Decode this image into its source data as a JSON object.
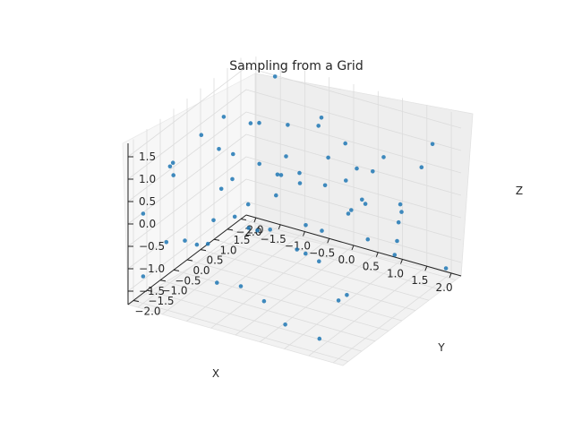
{
  "chart_data": {
    "type": "scatter",
    "title": "Sampling from a Grid",
    "xlabel": "X",
    "ylabel": "Y",
    "zlabel": "Z",
    "projection": "3d",
    "xlim": [
      -2.2,
      2.2
    ],
    "ylim": [
      -2.2,
      2.2
    ],
    "zlim": [
      -1.8,
      1.8
    ],
    "x_ticks": [
      "−2.0",
      "−1.5",
      "−1.0",
      "−0.5",
      "0.0",
      "0.5",
      "1.0",
      "1.5",
      "2.0"
    ],
    "y_ticks": [
      "−2.0",
      "−1.5",
      "−1.0",
      "−0.5",
      "0.0",
      "0.5",
      "1.0",
      "1.5",
      "2.0"
    ],
    "z_ticks": [
      "−1.5",
      "−1.0",
      "−0.5",
      "0.0",
      "0.5",
      "1.0",
      "1.5"
    ],
    "grid": true,
    "marker_color": "#1f77b4",
    "points": [
      {
        "x": -2.0,
        "y": -2.0,
        "z": -1.2
      },
      {
        "x": -2.0,
        "y": -2.0,
        "z": 0.2
      },
      {
        "x": -1.6,
        "y": -1.6,
        "z": 1.0
      },
      {
        "x": -1.8,
        "y": -1.5,
        "z": -0.6
      },
      {
        "x": -1.5,
        "y": -1.8,
        "z": 1.4
      },
      {
        "x": -1.2,
        "y": -1.9,
        "z": -0.2
      },
      {
        "x": -1.0,
        "y": -1.0,
        "z": 1.5
      },
      {
        "x": -1.0,
        "y": -1.2,
        "z": 0.0
      },
      {
        "x": -0.6,
        "y": -1.8,
        "z": -1.0
      },
      {
        "x": -0.4,
        "y": -1.5,
        "z": 0.4
      },
      {
        "x": 0.0,
        "y": -2.0,
        "z": -0.8
      },
      {
        "x": 0.2,
        "y": -1.5,
        "z": -1.3
      },
      {
        "x": 0.5,
        "y": -1.6,
        "z": 1.2
      },
      {
        "x": 0.8,
        "y": -1.8,
        "z": -1.5
      },
      {
        "x": 1.0,
        "y": -1.4,
        "z": 0.6
      },
      {
        "x": 1.5,
        "y": -1.8,
        "z": -1.6
      },
      {
        "x": 1.6,
        "y": -1.0,
        "z": 1.6
      },
      {
        "x": 2.0,
        "y": -2.0,
        "z": -0.5
      },
      {
        "x": -2.0,
        "y": -1.0,
        "z": 0.8
      },
      {
        "x": -1.5,
        "y": -0.5,
        "z": -1.0
      },
      {
        "x": -1.0,
        "y": -0.5,
        "z": 0.6
      },
      {
        "x": -0.5,
        "y": -0.8,
        "z": -0.2
      },
      {
        "x": 0.0,
        "y": -0.5,
        "z": 1.0
      },
      {
        "x": 0.5,
        "y": -0.5,
        "z": -0.6
      },
      {
        "x": 1.0,
        "y": -0.8,
        "z": 0.2
      },
      {
        "x": 1.4,
        "y": -0.6,
        "z": -1.2
      },
      {
        "x": 2.0,
        "y": -1.0,
        "z": 1.2
      },
      {
        "x": -2.0,
        "y": 0.0,
        "z": -1.4
      },
      {
        "x": -1.5,
        "y": 0.0,
        "z": 0.0
      },
      {
        "x": -1.0,
        "y": 0.5,
        "z": 1.4
      },
      {
        "x": -0.5,
        "y": 0.0,
        "z": -0.6
      },
      {
        "x": 0.0,
        "y": 0.2,
        "z": 0.5
      },
      {
        "x": 0.5,
        "y": 0.0,
        "z": -1.0
      },
      {
        "x": 1.0,
        "y": 0.5,
        "z": 1.0
      },
      {
        "x": 1.5,
        "y": 0.0,
        "z": -0.2
      },
      {
        "x": 2.0,
        "y": 0.3,
        "z": 0.6
      },
      {
        "x": -2.0,
        "y": 1.0,
        "z": 1.0
      },
      {
        "x": -1.5,
        "y": 1.0,
        "z": -0.8
      },
      {
        "x": -1.0,
        "y": 1.5,
        "z": 0.2
      },
      {
        "x": -0.5,
        "y": 1.0,
        "z": -1.5
      },
      {
        "x": 0.0,
        "y": 1.0,
        "z": 1.6
      },
      {
        "x": 0.5,
        "y": 1.2,
        "z": -0.4
      },
      {
        "x": 1.0,
        "y": 1.5,
        "z": 0.8
      },
      {
        "x": 1.5,
        "y": 1.0,
        "z": -1.0
      },
      {
        "x": 2.0,
        "y": 1.5,
        "z": 1.4
      },
      {
        "x": -2.0,
        "y": 2.0,
        "z": 0.4
      },
      {
        "x": -1.5,
        "y": 2.0,
        "z": 1.6
      },
      {
        "x": -1.0,
        "y": 2.0,
        "z": -0.4
      },
      {
        "x": -0.5,
        "y": 1.8,
        "z": 0.9
      },
      {
        "x": 0.0,
        "y": 2.0,
        "z": -1.0
      },
      {
        "x": 0.5,
        "y": 2.0,
        "z": 0.1
      },
      {
        "x": 1.0,
        "y": 2.0,
        "z": -1.3
      },
      {
        "x": 1.5,
        "y": 2.0,
        "z": 0.5
      },
      {
        "x": 2.0,
        "y": 2.0,
        "z": -1.6
      },
      {
        "x": -1.8,
        "y": -0.2,
        "z": 1.2
      },
      {
        "x": -1.2,
        "y": 0.8,
        "z": -1.2
      },
      {
        "x": -0.8,
        "y": 1.2,
        "z": 1.1
      },
      {
        "x": -0.2,
        "y": 1.5,
        "z": -0.2
      },
      {
        "x": 0.2,
        "y": -1.0,
        "z": 1.3
      },
      {
        "x": 0.8,
        "y": -0.2,
        "z": 1.5
      },
      {
        "x": 1.2,
        "y": 1.8,
        "z": -0.5
      },
      {
        "x": 1.8,
        "y": 0.6,
        "z": 0.0
      },
      {
        "x": -1.6,
        "y": 1.6,
        "z": -0.2
      },
      {
        "x": -0.6,
        "y": -1.2,
        "z": 1.6
      },
      {
        "x": 0.6,
        "y": 0.8,
        "z": 1.3
      },
      {
        "x": 1.6,
        "y": -0.4,
        "z": 0.9
      }
    ]
  }
}
